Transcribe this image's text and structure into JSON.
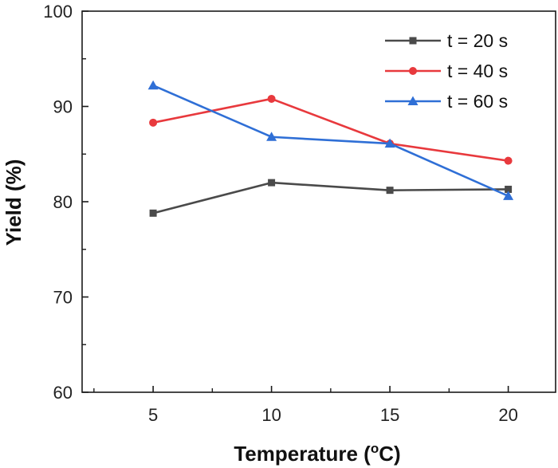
{
  "chart_data": {
    "type": "line",
    "title": "",
    "xlabel": "Temperature (",
    "xlabel_unit_degree": "o",
    "xlabel_unit_suffix": "C)",
    "ylabel": "Yield (%)",
    "x": [
      5,
      10,
      15,
      20
    ],
    "xticks": [
      "5",
      "10",
      "15",
      "20"
    ],
    "yticks": [
      "60",
      "70",
      "80",
      "90",
      "100"
    ],
    "xlim": [
      2,
      22
    ],
    "ylim": [
      60,
      100
    ],
    "grid": false,
    "legend_position": "top-right",
    "series": [
      {
        "name": "t = 20 s",
        "color": "#4a4a4a",
        "marker": "square",
        "values": [
          78.8,
          82.0,
          81.2,
          81.3
        ]
      },
      {
        "name": "t = 40 s",
        "color": "#e8393d",
        "marker": "circle",
        "values": [
          88.3,
          90.8,
          86.1,
          84.3
        ]
      },
      {
        "name": "t = 60 s",
        "color": "#2f6fd6",
        "marker": "triangle",
        "values": [
          92.2,
          86.8,
          86.1,
          80.6
        ]
      }
    ]
  }
}
